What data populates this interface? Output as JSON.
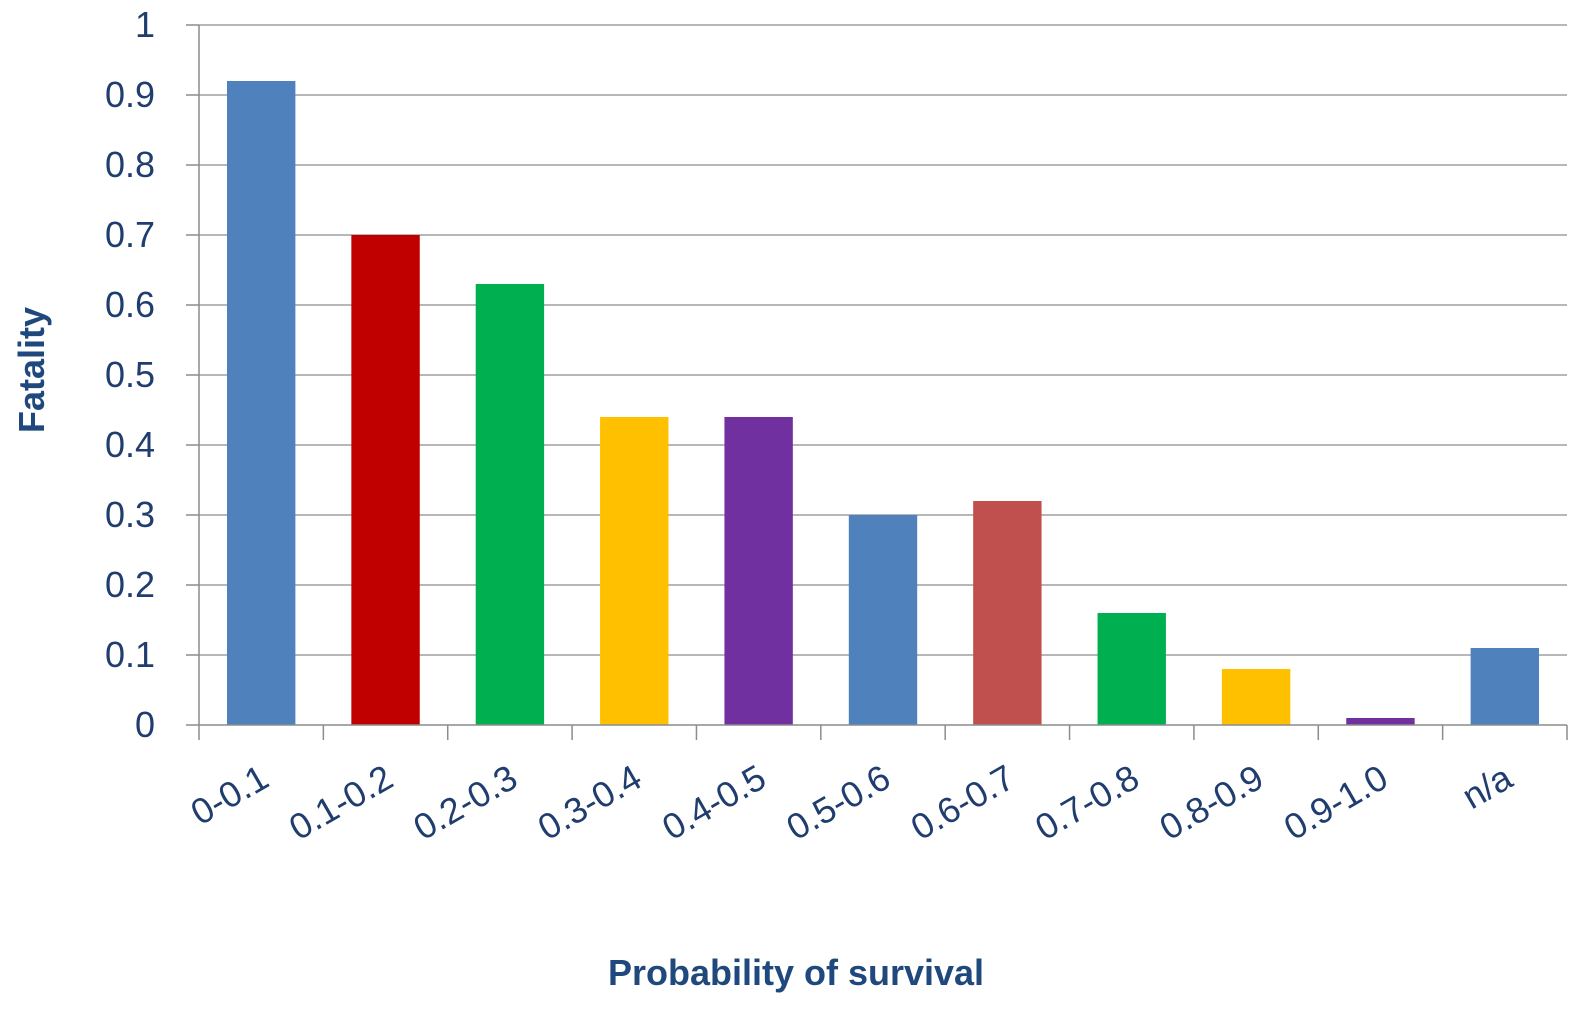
{
  "chart_data": {
    "type": "bar",
    "title": "",
    "xlabel": "Probability of survival",
    "ylabel": "Fatality",
    "categories": [
      "0-0.1",
      "0.1-0.2",
      "0.2-0.3",
      "0.3-0.4",
      "0.4-0.5",
      "0.5-0.6",
      "0.6-0.7",
      "0.7-0.8",
      "0.8-0.9",
      "0.9-1.0",
      "n/a"
    ],
    "values": [
      0.92,
      0.7,
      0.63,
      0.44,
      0.44,
      0.3,
      0.32,
      0.16,
      0.08,
      0.01,
      0.11
    ],
    "bar_colors": [
      "#4f81bd",
      "#c00000",
      "#00b050",
      "#ffc000",
      "#7030a0",
      "#4f81bd",
      "#c0504d",
      "#00b050",
      "#ffc000",
      "#7030a0",
      "#4f81bd"
    ],
    "ylim": [
      0,
      1
    ],
    "yticks": [
      "0",
      "0.1",
      "0.2",
      "0.3",
      "0.4",
      "0.5",
      "0.6",
      "0.7",
      "0.8",
      "0.9",
      "1"
    ],
    "grid": true,
    "legend": "none"
  }
}
